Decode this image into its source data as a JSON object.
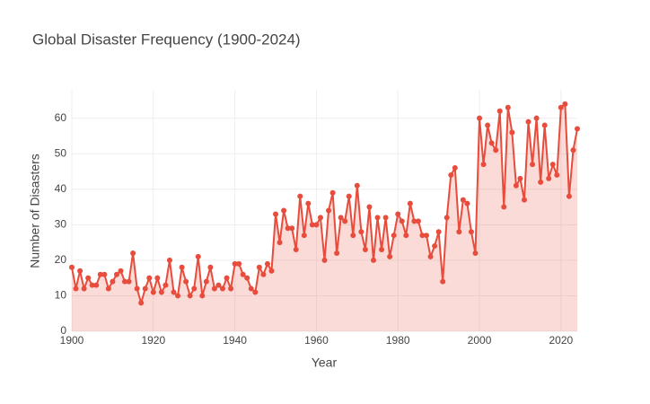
{
  "chart_data": {
    "type": "line",
    "title": "Global Disaster Frequency (1900-2024)",
    "x_label": "Year",
    "y_label": "Number of Disasters",
    "x": [
      1900,
      1901,
      1902,
      1903,
      1904,
      1905,
      1906,
      1907,
      1908,
      1909,
      1910,
      1911,
      1912,
      1913,
      1914,
      1915,
      1916,
      1917,
      1918,
      1919,
      1920,
      1921,
      1922,
      1923,
      1924,
      1925,
      1926,
      1927,
      1928,
      1929,
      1930,
      1931,
      1932,
      1933,
      1934,
      1935,
      1936,
      1937,
      1938,
      1939,
      1940,
      1941,
      1942,
      1943,
      1944,
      1945,
      1946,
      1947,
      1948,
      1949,
      1950,
      1951,
      1952,
      1953,
      1954,
      1955,
      1956,
      1957,
      1958,
      1959,
      1960,
      1961,
      1962,
      1963,
      1964,
      1965,
      1966,
      1967,
      1968,
      1969,
      1970,
      1971,
      1972,
      1973,
      1974,
      1975,
      1976,
      1977,
      1978,
      1979,
      1980,
      1981,
      1982,
      1983,
      1984,
      1985,
      1986,
      1987,
      1988,
      1989,
      1990,
      1991,
      1992,
      1993,
      1994,
      1995,
      1996,
      1997,
      1998,
      1999,
      2000,
      2001,
      2002,
      2003,
      2004,
      2005,
      2006,
      2007,
      2008,
      2009,
      2010,
      2011,
      2012,
      2013,
      2014,
      2015,
      2016,
      2017,
      2018,
      2019,
      2020,
      2021,
      2022,
      2023,
      2024
    ],
    "values": [
      18,
      12,
      17,
      12,
      15,
      13,
      13,
      16,
      16,
      12,
      14,
      16,
      17,
      14,
      14,
      22,
      12,
      8,
      12,
      15,
      11,
      15,
      11,
      13,
      20,
      11,
      10,
      18,
      14,
      10,
      12,
      21,
      10,
      14,
      18,
      12,
      13,
      12,
      15,
      12,
      19,
      19,
      16,
      15,
      12,
      11,
      18,
      16,
      19,
      17,
      33,
      25,
      34,
      29,
      29,
      23,
      38,
      27,
      36,
      30,
      30,
      32,
      20,
      34,
      39,
      22,
      32,
      31,
      38,
      27,
      41,
      28,
      23,
      35,
      20,
      32,
      23,
      32,
      21,
      27,
      33,
      31,
      27,
      36,
      31,
      31,
      27,
      27,
      21,
      24,
      28,
      14,
      32,
      44,
      46,
      28,
      37,
      36,
      28,
      22,
      60,
      47,
      58,
      53,
      51,
      62,
      35,
      63,
      56,
      41,
      43,
      37,
      59,
      47,
      60,
      42,
      58,
      43,
      47,
      44,
      63,
      64,
      38,
      51,
      57
    ],
    "color": "#e74c3c",
    "fill_color": "rgba(231,76,60,0.2)",
    "xlim": [
      1900,
      2024
    ],
    "xticks": [
      1900,
      1920,
      1940,
      1960,
      1980,
      2000,
      2020
    ],
    "ylim": [
      0,
      68
    ],
    "yticks": [
      0,
      10,
      20,
      30,
      40,
      50,
      60
    ],
    "grid": true
  }
}
